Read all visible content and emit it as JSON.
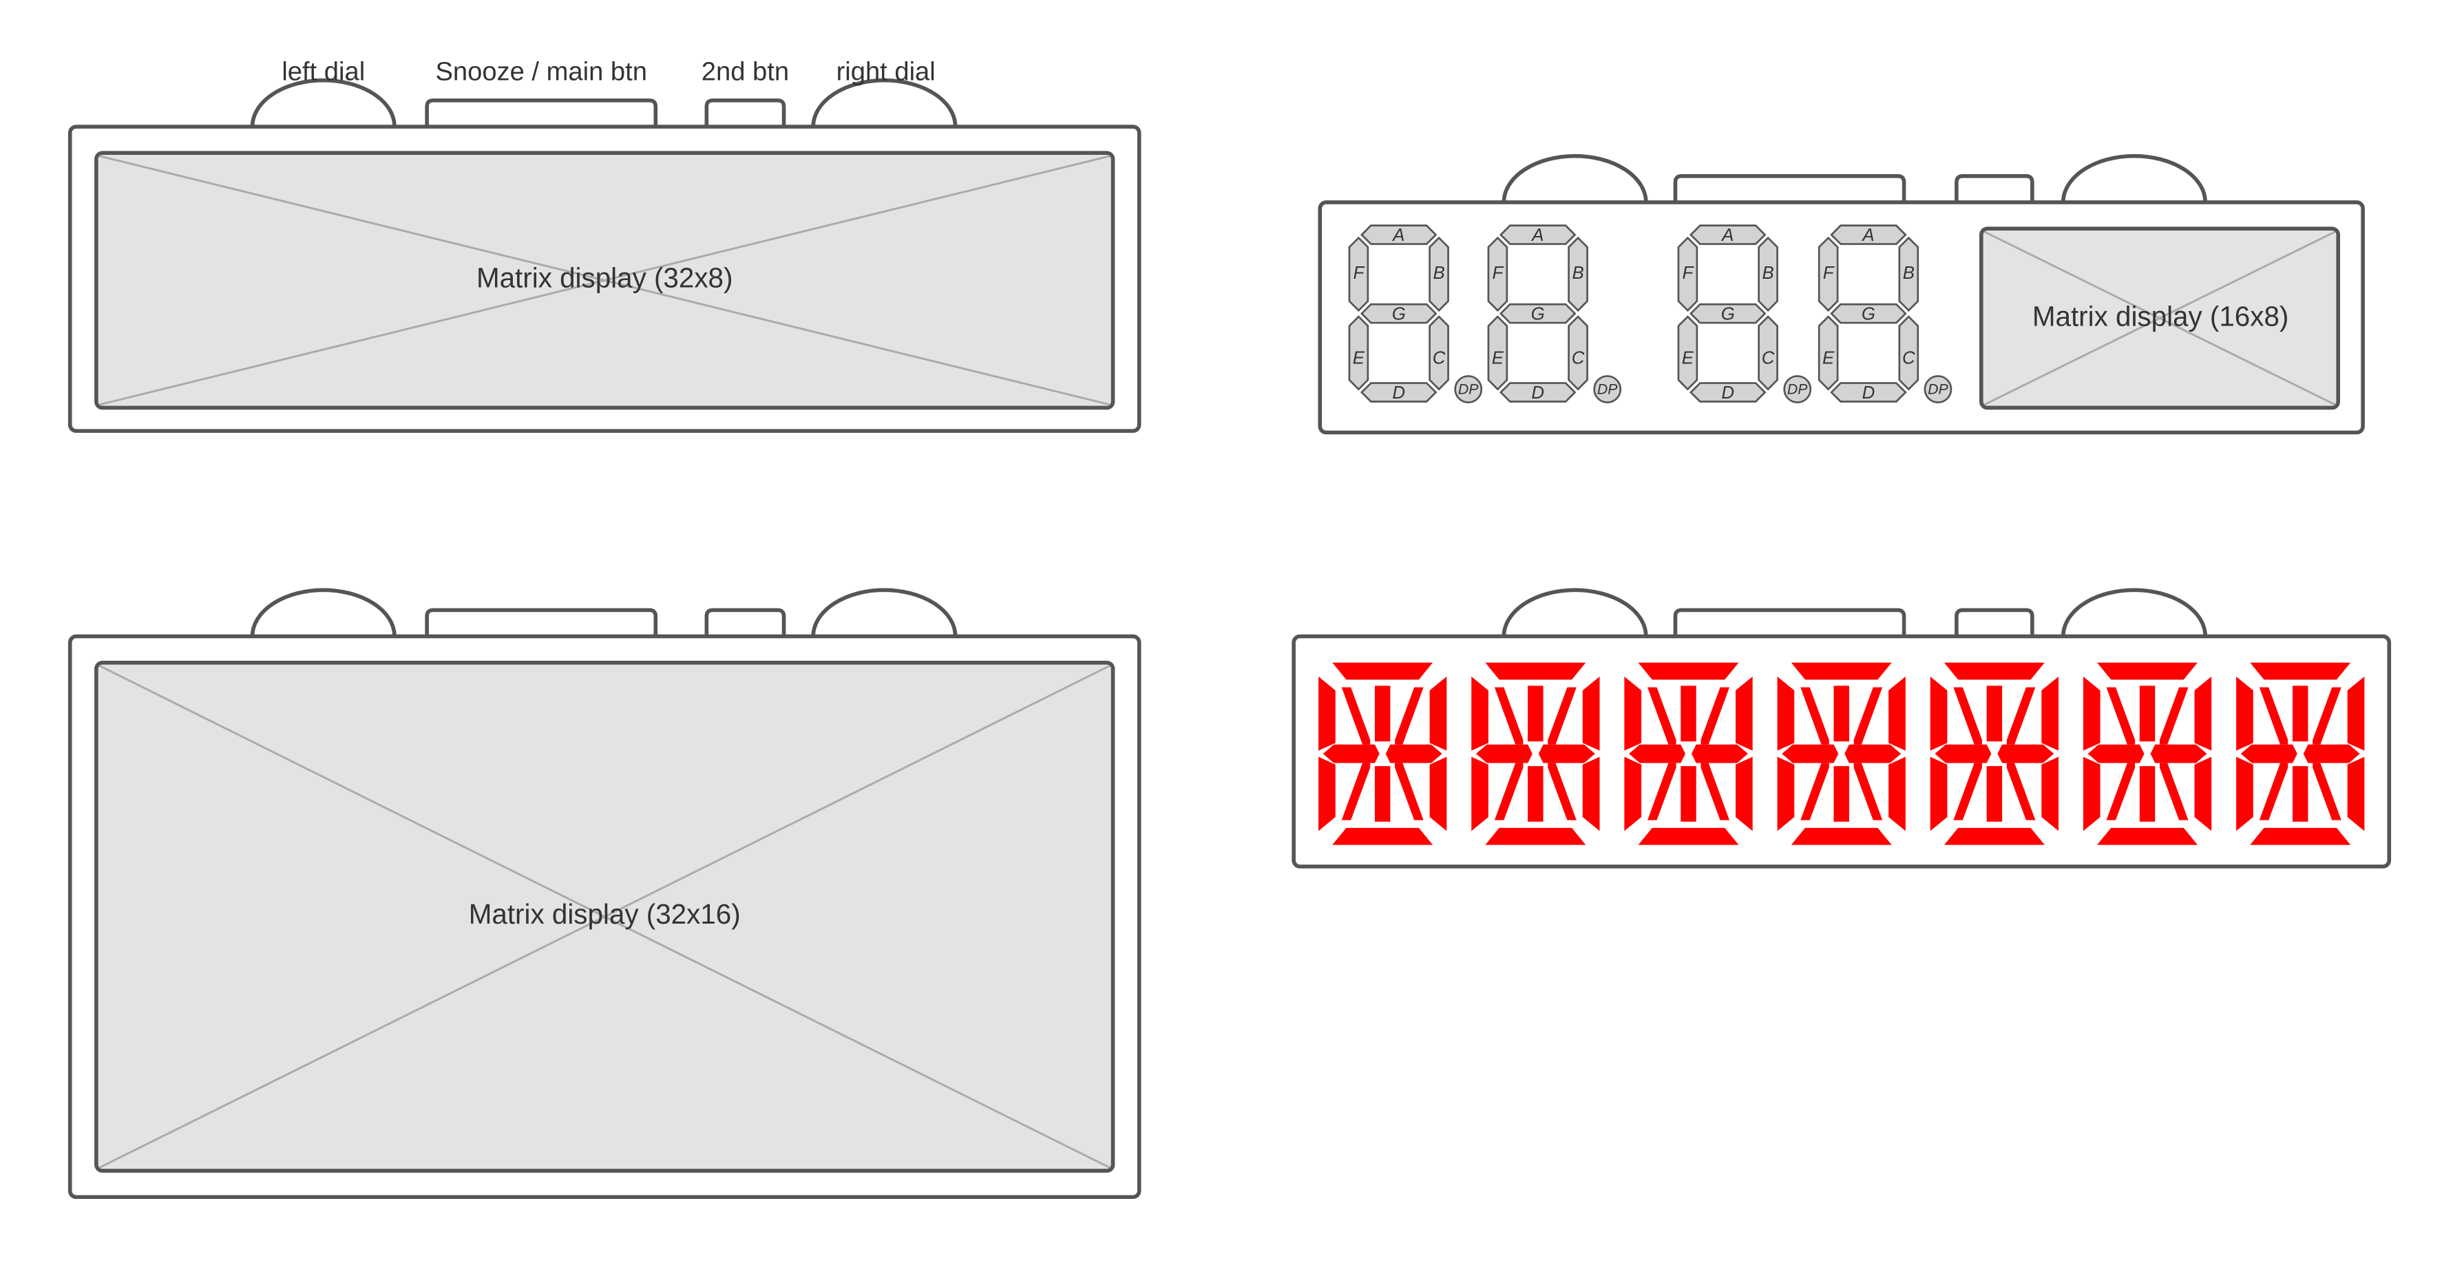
{
  "labels": {
    "left_dial": "left dial",
    "snooze_btn": "Snooze / main btn",
    "second_btn": "2nd btn",
    "right_dial": "right dial"
  },
  "displays": {
    "matrix_32x8": "Matrix display (32x8)",
    "matrix_16x8": "Matrix display (16x8)",
    "matrix_32x16": "Matrix display (32x16)"
  },
  "seven_segment": {
    "segments": [
      "A",
      "B",
      "C",
      "D",
      "E",
      "F",
      "G"
    ],
    "dp": "DP",
    "digit_count": 4
  },
  "alphanumeric": {
    "digit_count": 7
  },
  "colors": {
    "outline": "#555555",
    "screen_fill": "#e3e3e3",
    "cross_line": "#aaaaaa",
    "segment_fill": "#d3d3d3",
    "segment_red": "#ff0000",
    "text": "#333333"
  }
}
